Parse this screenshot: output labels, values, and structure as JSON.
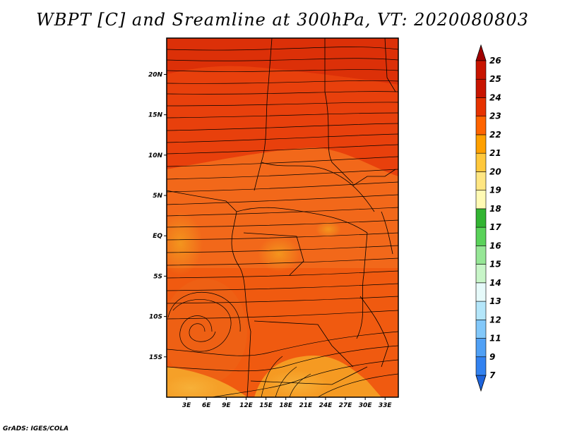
{
  "title": "WBPT [C] and Sreamline at 300hPa, VT: 2020080803",
  "footer": "GrADS: IGES/COLA",
  "map": {
    "lon_range": [
      0,
      35
    ],
    "lat_range": [
      -20,
      24.5
    ],
    "lon_ticks": [
      {
        "value": 3,
        "label": "3E"
      },
      {
        "value": 6,
        "label": "6E"
      },
      {
        "value": 9,
        "label": "9E"
      },
      {
        "value": 12,
        "label": "12E"
      },
      {
        "value": 15,
        "label": "15E"
      },
      {
        "value": 18,
        "label": "18E"
      },
      {
        "value": 21,
        "label": "21E"
      },
      {
        "value": 24,
        "label": "24E"
      },
      {
        "value": 27,
        "label": "27E"
      },
      {
        "value": 30,
        "label": "30E"
      },
      {
        "value": 33,
        "label": "33E"
      }
    ],
    "lat_ticks": [
      {
        "value": 20,
        "label": "20N"
      },
      {
        "value": 15,
        "label": "15N"
      },
      {
        "value": 10,
        "label": "10N"
      },
      {
        "value": 5,
        "label": "5N"
      },
      {
        "value": 0,
        "label": "EQ"
      },
      {
        "value": -5,
        "label": "5S"
      },
      {
        "value": -10,
        "label": "10S"
      },
      {
        "value": -15,
        "label": "15S"
      }
    ]
  },
  "colorbar": {
    "labels": [
      "7",
      "9",
      "11",
      "12",
      "13",
      "14",
      "15",
      "16",
      "17",
      "18",
      "19",
      "20",
      "21",
      "22",
      "23",
      "24",
      "25",
      "26"
    ],
    "colors": [
      "#1e64dc",
      "#3282f0",
      "#50a0f5",
      "#82c8fa",
      "#b4e6fa",
      "#e6fafa",
      "#c8f5c8",
      "#96e696",
      "#5ad25a",
      "#32b432",
      "#fffab4",
      "#ffe682",
      "#ffc83c",
      "#ffa000",
      "#ff6400",
      "#e63200",
      "#c81400",
      "#a00000"
    ]
  }
}
